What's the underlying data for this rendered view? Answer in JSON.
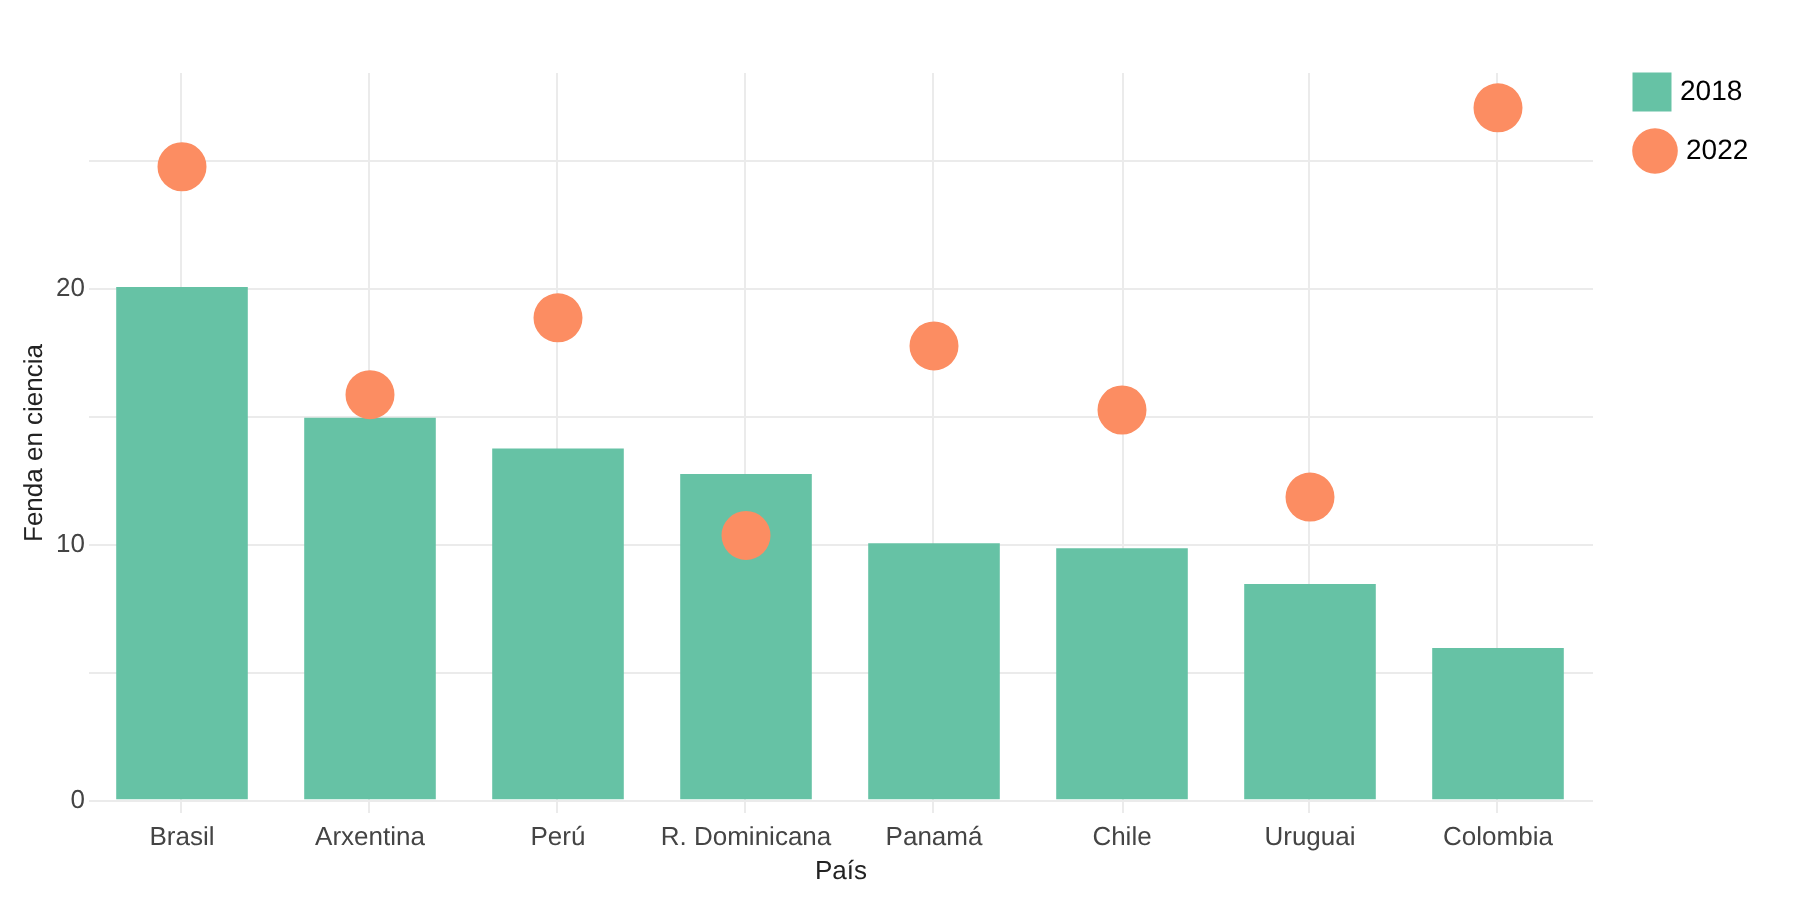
{
  "chart_data": {
    "type": "bar",
    "xlabel": "País",
    "ylabel": "Fenda en ciencia",
    "categories": [
      "Brasil",
      "Arxentina",
      "Perú",
      "R. Dominicana",
      "Panamá",
      "Chile",
      "Uruguai",
      "Colombia"
    ],
    "series": [
      {
        "name": "2018",
        "color": "#66c2a5",
        "values": [
          20,
          14.9,
          13.7,
          12.7,
          10.0,
          9.8,
          8.4,
          5.9
        ]
      },
      {
        "name": "2022",
        "type": "scatter",
        "color": "#fc8d62",
        "marker": "circle",
        "values": [
          24.7,
          15.8,
          18.8,
          10.3,
          17.7,
          15.2,
          11.8,
          27.0
        ]
      }
    ],
    "ylim": [
      -0.5,
      28.4
    ],
    "yticks": [
      0,
      {
        "value": 5,
        "label": null
      },
      10,
      {
        "value": 15,
        "label": null
      },
      20,
      {
        "value": 25,
        "label": null
      }
    ],
    "grid": true,
    "legend": "right"
  }
}
